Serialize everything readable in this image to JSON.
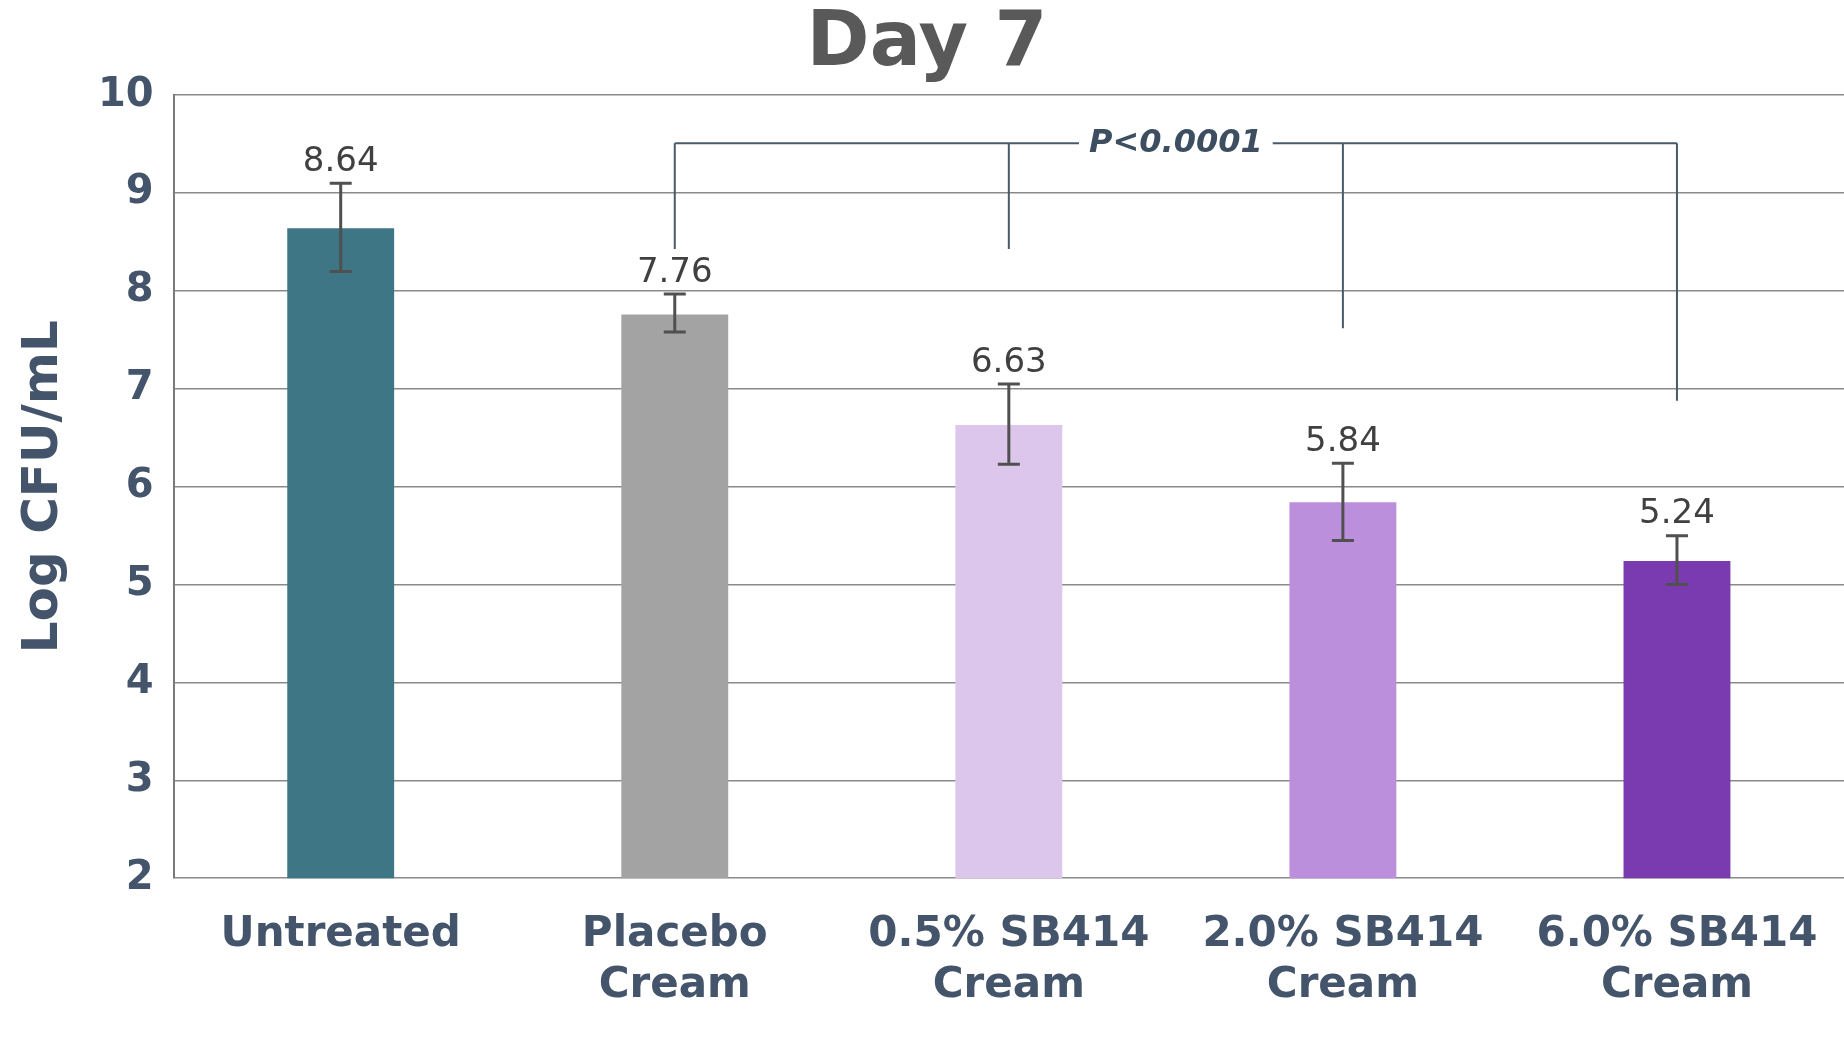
{
  "chart_data": {
    "type": "bar",
    "title": "Day 7",
    "ylabel": "Log CFU/mL",
    "categories": [
      "Untreated",
      "Placebo Cream",
      "0.5% SB414 Cream",
      "2.0% SB414 Cream",
      "6.0% SB414 Cream"
    ],
    "values": [
      8.64,
      7.76,
      6.63,
      5.84,
      5.24
    ],
    "colors": [
      "#3f7686",
      "#a3a3a3",
      "#dcc6ec",
      "#bb8fdc",
      "#7a3ab0"
    ],
    "errors": [
      [
        8.2,
        9.1
      ],
      [
        7.58,
        7.97
      ],
      [
        6.23,
        7.05
      ],
      [
        5.45,
        6.24
      ],
      [
        5.0,
        5.5
      ]
    ],
    "ylim": [
      2,
      10
    ],
    "yticks": [
      2,
      3,
      4,
      5,
      6,
      7,
      8,
      9,
      10
    ],
    "grid": "y",
    "data_labels": true,
    "annotations": [
      "P<0.0001"
    ]
  }
}
